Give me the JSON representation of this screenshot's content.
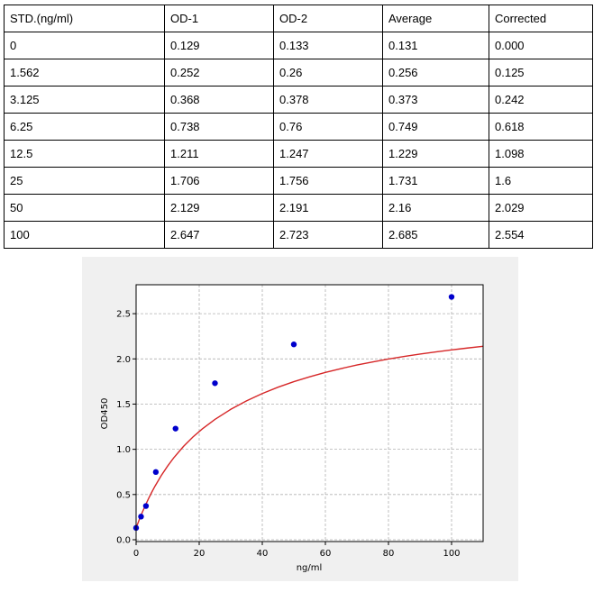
{
  "table": {
    "headers": [
      "STD.(ng/ml)",
      "OD-1",
      "OD-2",
      "Average",
      "Corrected"
    ],
    "rows": [
      [
        "0",
        "0.129",
        "0.133",
        "0.131",
        "0.000"
      ],
      [
        "1.562",
        "0.252",
        "0.26",
        "0.256",
        "0.125"
      ],
      [
        "3.125",
        "0.368",
        "0.378",
        "0.373",
        "0.242"
      ],
      [
        "6.25",
        "0.738",
        "0.76",
        "0.749",
        "0.618"
      ],
      [
        "12.5",
        "1.211",
        "1.247",
        "1.229",
        "1.098"
      ],
      [
        "25",
        "1.706",
        "1.756",
        "1.731",
        "1.6"
      ],
      [
        "50",
        "2.129",
        "2.191",
        "2.16",
        "2.029"
      ],
      [
        "100",
        "2.647",
        "2.723",
        "2.685",
        "2.554"
      ]
    ]
  },
  "chart_data": {
    "type": "scatter",
    "title": "",
    "xlabel": "ng/ml",
    "ylabel": "OD450",
    "xlim": [
      0,
      110
    ],
    "ylim": [
      -0.02,
      2.82
    ],
    "xticks": [
      0,
      20,
      40,
      60,
      80,
      100
    ],
    "xtick_labels": [
      "0",
      "20",
      "40",
      "60",
      "80",
      "100"
    ],
    "yticks": [
      0.0,
      0.5,
      1.0,
      1.5,
      2.0,
      2.5
    ],
    "ytick_labels": [
      "0.0",
      "0.5",
      "1.0",
      "1.5",
      "2.0",
      "2.5"
    ],
    "grid": true,
    "series": [
      {
        "kind": "points",
        "color": "#0000cc",
        "x": [
          0,
          1.562,
          3.125,
          6.25,
          12.5,
          25,
          50,
          100
        ],
        "y": [
          0.131,
          0.256,
          0.373,
          0.749,
          1.229,
          1.731,
          2.16,
          2.685
        ]
      },
      {
        "kind": "fit-curve",
        "color": "#d62728",
        "x": [
          0,
          1,
          2,
          3,
          4,
          5,
          6,
          8,
          10,
          12,
          15,
          18,
          21,
          25,
          30,
          35,
          40,
          45,
          50,
          55,
          60,
          65,
          70,
          75,
          80,
          85,
          90,
          95,
          100,
          105,
          110
        ],
        "y": [
          0.131,
          0.222,
          0.306,
          0.385,
          0.459,
          0.528,
          0.593,
          0.711,
          0.815,
          0.909,
          1.031,
          1.136,
          1.226,
          1.331,
          1.442,
          1.536,
          1.617,
          1.687,
          1.748,
          1.802,
          1.85,
          1.893,
          1.932,
          1.966,
          1.998,
          2.027,
          2.053,
          2.077,
          2.099,
          2.12,
          2.139
        ]
      }
    ]
  }
}
